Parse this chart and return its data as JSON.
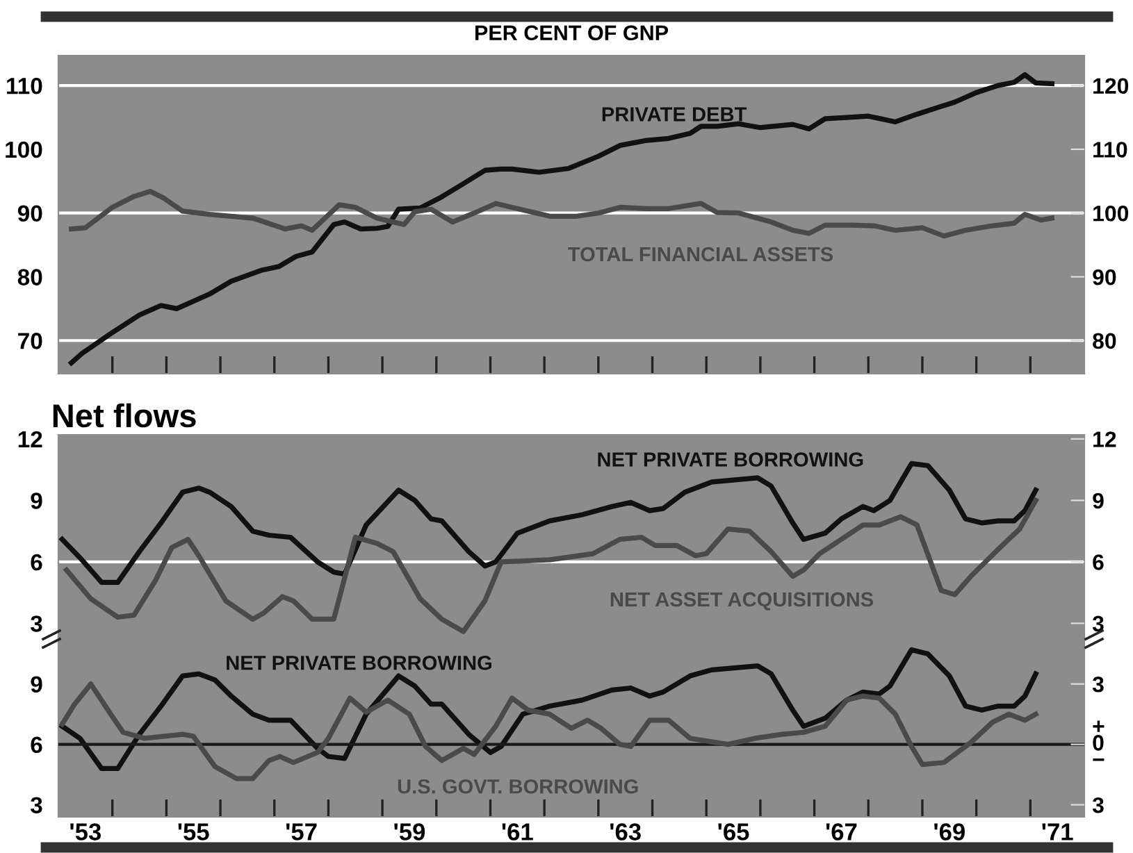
{
  "chart_data": [
    {
      "type": "line",
      "title": "PER CENT OF GNP",
      "xlim": [
        1952.5,
        1971.5
      ],
      "ylim": [
        64.8,
        114.7
      ],
      "yticks": [
        70,
        80,
        90,
        100,
        110
      ],
      "y2lim": [
        74.8,
        124.7
      ],
      "y2ticks": [
        80,
        90,
        100,
        110,
        120
      ],
      "xticks": [
        {
          "value": 1953.5,
          "label": null
        },
        {
          "value": 1954.5,
          "label": null
        },
        {
          "value": 1955.5,
          "label": null
        },
        {
          "value": 1956.5,
          "label": null
        },
        {
          "value": 1957.5,
          "label": null
        },
        {
          "value": 1958.5,
          "label": null
        },
        {
          "value": 1959.5,
          "label": null
        },
        {
          "value": 1960.5,
          "label": null
        },
        {
          "value": 1961.5,
          "label": null
        },
        {
          "value": 1962.5,
          "label": null
        },
        {
          "value": 1963.5,
          "label": null
        },
        {
          "value": 1964.5,
          "label": null
        },
        {
          "value": 1965.5,
          "label": null
        },
        {
          "value": 1966.5,
          "label": null
        },
        {
          "value": 1967.5,
          "label": null
        },
        {
          "value": 1968.5,
          "label": null
        },
        {
          "value": 1969.5,
          "label": null
        },
        {
          "value": 1970.5,
          "label": null
        }
      ],
      "tick_labels": "y",
      "grid": false,
      "legend": false,
      "ref_lines": [
        {
          "axis": "y",
          "value": 110,
          "color": "#ffffff"
        },
        {
          "axis": "y",
          "value": 90,
          "color": "#ffffff"
        },
        {
          "axis": "y",
          "value": 70,
          "color": "#ffffff"
        }
      ],
      "series": [
        {
          "name": "PRIVATE DEBT",
          "color": "#111111",
          "x": [
            1952.74,
            1952.94,
            1953.47,
            1954.0,
            1954.4,
            1954.69,
            1955.3,
            1955.7,
            1956.25,
            1956.58,
            1956.9,
            1957.2,
            1957.6,
            1957.8,
            1958.1,
            1958.4,
            1958.6,
            1958.8,
            1959.2,
            1959.55,
            1960.0,
            1960.4,
            1960.7,
            1960.9,
            1961.4,
            1961.95,
            1962.5,
            1962.9,
            1963.4,
            1963.8,
            1964.2,
            1964.4,
            1964.7,
            1965.1,
            1965.5,
            1966.1,
            1966.4,
            1966.7,
            1967.1,
            1967.5,
            1968.0,
            1968.4,
            1968.8,
            1969.1,
            1969.5,
            1969.9,
            1970.2,
            1970.4,
            1970.6,
            1970.9
          ],
          "values": [
            66.5,
            68.0,
            71.1,
            74.0,
            75.5,
            75.0,
            77.3,
            79.3,
            81.0,
            81.6,
            83.2,
            83.9,
            88.2,
            88.6,
            87.5,
            87.6,
            87.9,
            90.6,
            90.8,
            92.3,
            94.6,
            96.7,
            96.9,
            96.9,
            96.4,
            97.0,
            98.9,
            100.6,
            101.4,
            101.7,
            102.5,
            103.6,
            103.6,
            104.0,
            103.4,
            103.9,
            103.2,
            104.8,
            105.0,
            105.2,
            104.3,
            105.5,
            106.6,
            107.4,
            108.9,
            110.0,
            110.5,
            111.7,
            110.4,
            110.3
          ]
        },
        {
          "name": "TOTAL FINANCIAL ASSETS",
          "color": "#4a4a4a",
          "axis": "y2",
          "x": [
            1952.74,
            1953.0,
            1953.5,
            1953.9,
            1954.2,
            1954.46,
            1954.8,
            1955.3,
            1955.7,
            1956.1,
            1956.7,
            1957.0,
            1957.2,
            1957.7,
            1958.0,
            1958.4,
            1958.9,
            1959.1,
            1959.4,
            1959.8,
            1960.2,
            1960.6,
            1961.2,
            1961.6,
            1962.1,
            1962.5,
            1962.9,
            1963.4,
            1963.8,
            1964.4,
            1964.7,
            1965.1,
            1965.7,
            1966.1,
            1966.4,
            1966.7,
            1967.2,
            1967.6,
            1968.0,
            1968.5,
            1968.9,
            1969.3,
            1969.8,
            1970.2,
            1970.4,
            1970.7,
            1970.9
          ],
          "values": [
            97.5,
            97.7,
            100.9,
            102.6,
            103.4,
            102.3,
            100.3,
            99.8,
            99.5,
            99.2,
            97.5,
            98.0,
            97.3,
            101.3,
            100.9,
            99.2,
            98.2,
            100.2,
            100.6,
            98.6,
            100.0,
            101.5,
            100.3,
            99.5,
            99.5,
            100.0,
            100.9,
            100.7,
            100.7,
            101.5,
            100.1,
            100.0,
            98.6,
            97.3,
            96.8,
            98.1,
            98.1,
            98.0,
            97.3,
            97.7,
            96.4,
            97.3,
            98.0,
            98.4,
            99.8,
            98.9,
            99.2
          ]
        }
      ]
    },
    {
      "type": "line",
      "title": "Net flows",
      "xlim": [
        1952.5,
        1971.5
      ],
      "ylim": [
        2.3,
        12.2
      ],
      "yticks": [
        3,
        6,
        9,
        12
      ],
      "y2lim": [
        2.3,
        12.2
      ],
      "y2ticks": [
        3,
        6,
        9,
        12
      ],
      "tick_labels": "y",
      "grid": false,
      "legend": false,
      "ref_lines": [
        {
          "axis": "y",
          "value": 6,
          "color": "#ffffff"
        }
      ],
      "series": [
        {
          "name": "NET PRIVATE BORROWING",
          "color": "#111111",
          "x": [
            1952.57,
            1952.9,
            1953.3,
            1953.6,
            1954.0,
            1954.4,
            1954.8,
            1955.1,
            1955.3,
            1955.7,
            1956.1,
            1956.4,
            1956.8,
            1957.3,
            1957.6,
            1957.8,
            1958.2,
            1958.8,
            1959.1,
            1959.4,
            1959.6,
            1960.1,
            1960.4,
            1960.6,
            1961.0,
            1961.6,
            1962.2,
            1962.75,
            1963.1,
            1963.45,
            1963.7,
            1964.1,
            1964.6,
            1965.45,
            1965.7,
            1966.1,
            1966.3,
            1966.7,
            1967.0,
            1967.4,
            1967.6,
            1967.9,
            1968.3,
            1968.6,
            1969.0,
            1969.3,
            1969.6,
            1969.9,
            1970.2,
            1970.4,
            1970.6
          ],
          "values": [
            7.1,
            6.2,
            5.0,
            5.0,
            6.5,
            7.9,
            9.4,
            9.6,
            9.4,
            8.7,
            7.5,
            7.3,
            7.2,
            6.0,
            5.5,
            5.4,
            7.8,
            9.5,
            9.0,
            8.1,
            8.0,
            6.5,
            5.8,
            6.0,
            7.4,
            8.0,
            8.3,
            8.7,
            8.9,
            8.5,
            8.6,
            9.4,
            9.9,
            10.1,
            9.7,
            7.9,
            7.1,
            7.4,
            8.1,
            8.7,
            8.5,
            9.0,
            10.8,
            10.7,
            9.5,
            8.1,
            7.9,
            8.0,
            8.0,
            8.5,
            9.5
          ]
        },
        {
          "name": "NET ASSET ACQUISITIONS",
          "color": "#4a4a4a",
          "x": [
            1952.65,
            1953.1,
            1953.6,
            1953.9,
            1954.3,
            1954.6,
            1954.9,
            1955.1,
            1955.6,
            1956.1,
            1956.3,
            1956.65,
            1956.85,
            1957.2,
            1957.6,
            1958.0,
            1958.4,
            1958.7,
            1959.2,
            1959.6,
            1960.0,
            1960.4,
            1960.7,
            1961.6,
            1962.4,
            1962.9,
            1963.3,
            1963.55,
            1963.95,
            1964.3,
            1964.5,
            1964.9,
            1965.3,
            1965.7,
            1966.1,
            1966.3,
            1966.6,
            1967.4,
            1967.7,
            1968.1,
            1968.4,
            1968.85,
            1969.1,
            1969.4,
            1969.9,
            1970.3,
            1970.6
          ],
          "values": [
            5.6,
            4.2,
            3.3,
            3.4,
            5.1,
            6.7,
            7.1,
            6.3,
            4.1,
            3.2,
            3.5,
            4.3,
            4.1,
            3.2,
            3.2,
            7.2,
            6.9,
            6.5,
            4.2,
            3.2,
            2.6,
            4.1,
            6.0,
            6.1,
            6.4,
            7.1,
            7.2,
            6.8,
            6.8,
            6.3,
            6.4,
            7.6,
            7.5,
            6.5,
            5.3,
            5.6,
            6.4,
            7.8,
            7.8,
            8.2,
            7.8,
            4.6,
            4.4,
            5.3,
            6.6,
            7.6,
            9.0
          ]
        }
      ]
    },
    {
      "type": "line",
      "xlim": [
        1952.5,
        1971.5
      ],
      "ylim": [
        2.4,
        11.3
      ],
      "yticks": [
        3,
        6,
        9
      ],
      "y2lim": [
        -3.6,
        5.3
      ],
      "y2ticks": [
        {
          "value": 3,
          "label": "3"
        },
        {
          "value": 0,
          "label": "+\n0\n−"
        },
        {
          "value": -3,
          "label": "3"
        }
      ],
      "xticks": [
        {
          "value": 1953,
          "label": "'53"
        },
        {
          "value": 1953.5,
          "label": null
        },
        {
          "value": 1954.5,
          "label": null
        },
        {
          "value": 1955,
          "label": "'55"
        },
        {
          "value": 1955.5,
          "label": null
        },
        {
          "value": 1956.5,
          "label": null
        },
        {
          "value": 1957,
          "label": "'57"
        },
        {
          "value": 1957.5,
          "label": null
        },
        {
          "value": 1958.5,
          "label": null
        },
        {
          "value": 1959,
          "label": "'59"
        },
        {
          "value": 1959.5,
          "label": null
        },
        {
          "value": 1960.5,
          "label": null
        },
        {
          "value": 1961,
          "label": "'61"
        },
        {
          "value": 1961.5,
          "label": null
        },
        {
          "value": 1962.5,
          "label": null
        },
        {
          "value": 1963,
          "label": "'63"
        },
        {
          "value": 1963.5,
          "label": null
        },
        {
          "value": 1964.5,
          "label": null
        },
        {
          "value": 1965,
          "label": "'65"
        },
        {
          "value": 1965.5,
          "label": null
        },
        {
          "value": 1966.5,
          "label": null
        },
        {
          "value": 1967,
          "label": "'67"
        },
        {
          "value": 1967.5,
          "label": null
        },
        {
          "value": 1968.5,
          "label": null
        },
        {
          "value": 1969,
          "label": "'69"
        },
        {
          "value": 1969.5,
          "label": null
        },
        {
          "value": 1970.5,
          "label": null
        },
        {
          "value": 1971,
          "label": "'71"
        }
      ],
      "grid": false,
      "legend": false,
      "ref_lines": [
        {
          "axis": "y2",
          "value": 0,
          "color": "#1a1a1a"
        }
      ],
      "series": [
        {
          "name": "NET PRIVATE BORROWING",
          "color": "#111111",
          "x": [
            1952.57,
            1952.9,
            1953.3,
            1953.6,
            1954.0,
            1954.4,
            1954.8,
            1955.1,
            1955.4,
            1955.7,
            1956.1,
            1956.4,
            1956.8,
            1957.3,
            1957.5,
            1957.8,
            1958.2,
            1958.8,
            1959.1,
            1959.4,
            1959.6,
            1960.1,
            1960.5,
            1960.7,
            1961.1,
            1961.6,
            1962.2,
            1962.75,
            1963.1,
            1963.45,
            1963.7,
            1964.2,
            1964.6,
            1965.45,
            1965.7,
            1966.1,
            1966.3,
            1966.7,
            1967.1,
            1967.4,
            1967.7,
            1967.9,
            1968.3,
            1968.6,
            1969.0,
            1969.3,
            1969.6,
            1969.9,
            1970.2,
            1970.4,
            1970.6
          ],
          "values": [
            6.9,
            6.3,
            4.8,
            4.8,
            6.5,
            7.9,
            9.4,
            9.5,
            9.2,
            8.4,
            7.5,
            7.2,
            7.2,
            5.8,
            5.4,
            5.3,
            7.5,
            9.4,
            8.9,
            8.0,
            8.0,
            6.5,
            5.6,
            5.9,
            7.5,
            7.9,
            8.2,
            8.7,
            8.8,
            8.4,
            8.6,
            9.4,
            9.7,
            9.9,
            9.5,
            7.7,
            6.9,
            7.3,
            8.2,
            8.6,
            8.5,
            8.9,
            10.7,
            10.5,
            9.4,
            7.9,
            7.7,
            7.9,
            7.9,
            8.4,
            9.5
          ]
        },
        {
          "name": "U.S. GOVT. BORROWING",
          "color": "#4a4a4a",
          "axis": "y2",
          "x": [
            1952.57,
            1952.8,
            1953.1,
            1953.47,
            1953.7,
            1954.1,
            1954.8,
            1955.0,
            1955.4,
            1955.8,
            1956.1,
            1956.4,
            1956.6,
            1956.85,
            1957.3,
            1957.5,
            1957.9,
            1958.2,
            1958.6,
            1959.0,
            1959.3,
            1959.6,
            1960.0,
            1960.2,
            1960.6,
            1960.9,
            1961.2,
            1961.6,
            1962.0,
            1962.3,
            1962.55,
            1962.9,
            1963.1,
            1963.45,
            1963.8,
            1964.2,
            1964.9,
            1965.4,
            1965.9,
            1966.3,
            1966.7,
            1967.1,
            1967.4,
            1967.7,
            1968.0,
            1968.3,
            1968.5,
            1968.9,
            1969.4,
            1969.8,
            1970.1,
            1970.4,
            1970.6
          ],
          "values": [
            1.0,
            2.0,
            3.0,
            1.5,
            0.6,
            0.3,
            0.5,
            0.4,
            -1.1,
            -1.7,
            -1.7,
            -0.8,
            -0.6,
            -0.9,
            -0.4,
            0.3,
            2.3,
            1.6,
            2.2,
            1.5,
            -0.1,
            -0.8,
            -0.2,
            -0.5,
            0.9,
            2.3,
            1.7,
            1.5,
            0.8,
            1.2,
            0.8,
            0.0,
            -0.1,
            1.2,
            1.2,
            0.3,
            0.0,
            0.3,
            0.5,
            0.6,
            0.9,
            2.2,
            2.4,
            2.3,
            1.5,
            -0.1,
            -1.0,
            -0.9,
            0.1,
            1.1,
            1.5,
            1.2,
            1.5
          ]
        }
      ]
    }
  ]
}
